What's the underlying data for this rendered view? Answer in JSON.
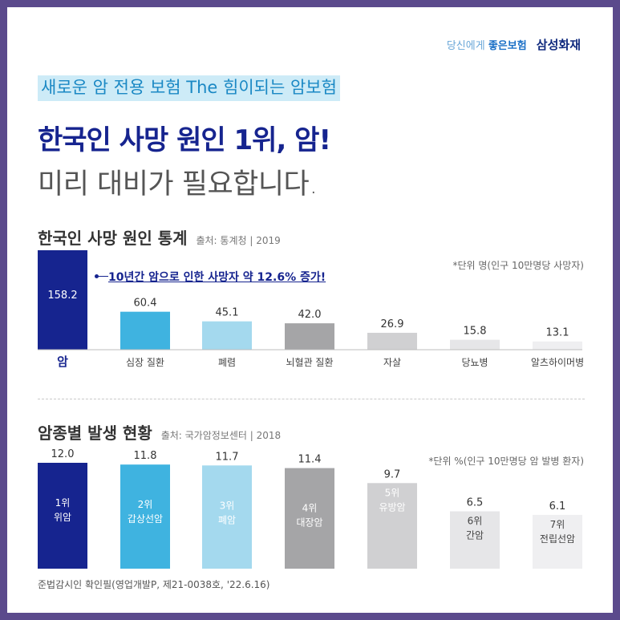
{
  "brand": {
    "slogan_prefix": "당신에게",
    "slogan_bold": "좋은보험",
    "company": "삼성화재"
  },
  "tag": "새로운 암 전용 보험 The 힘이되는 암보험",
  "headline": "한국인 사망 원인 1위, 암!",
  "subhead": "미리 대비가 필요합니다.",
  "footer": "준법감시인 확인필(영업개발P, 제21-0038호, '22.6.16)",
  "colors": {
    "navy": "#16248f",
    "blue": "#3fb3e0",
    "light_blue": "#a4d9ee",
    "gray": "#a5a5a7",
    "light_gray": "#d0d0d2",
    "lighter_gray": "#e6e6e8",
    "lightest_gray": "#efeff1"
  },
  "chart_data": [
    {
      "type": "bar",
      "title": "한국인 사망 원인 통계",
      "source": "출처: 통계청 | 2019",
      "unit_note": "*단위 명(인구 10만명당 사망자)",
      "annotation": "10년간 암으로 인한 사망자 약 12.6% 증가!",
      "categories": [
        "암",
        "심장 질환",
        "폐렴",
        "뇌혈관 질환",
        "자살",
        "당뇨병",
        "알츠하이머병"
      ],
      "values": [
        158.2,
        60.4,
        45.1,
        42.0,
        26.9,
        15.8,
        13.1
      ],
      "value_labels": [
        "158.2",
        "60.4",
        "45.1",
        "42.0",
        "26.9",
        "15.8",
        "13.1"
      ]
    },
    {
      "type": "bar",
      "title": "암종별 발생 현황",
      "source": "출처: 국가암정보센터 | 2018",
      "unit_note": "*단위 %(인구 10만명당 암 발병 환자)",
      "categories": [
        "1위\n위암",
        "2위\n갑상선암",
        "3위\n폐암",
        "4위\n대장암",
        "5위\n유방암",
        "6위\n간암",
        "7위\n전립선암"
      ],
      "values": [
        12.0,
        11.8,
        11.7,
        11.4,
        9.7,
        6.5,
        6.1
      ],
      "value_labels": [
        "12.0",
        "11.8",
        "11.7",
        "11.4",
        "9.7",
        "6.5",
        "6.1"
      ]
    }
  ]
}
